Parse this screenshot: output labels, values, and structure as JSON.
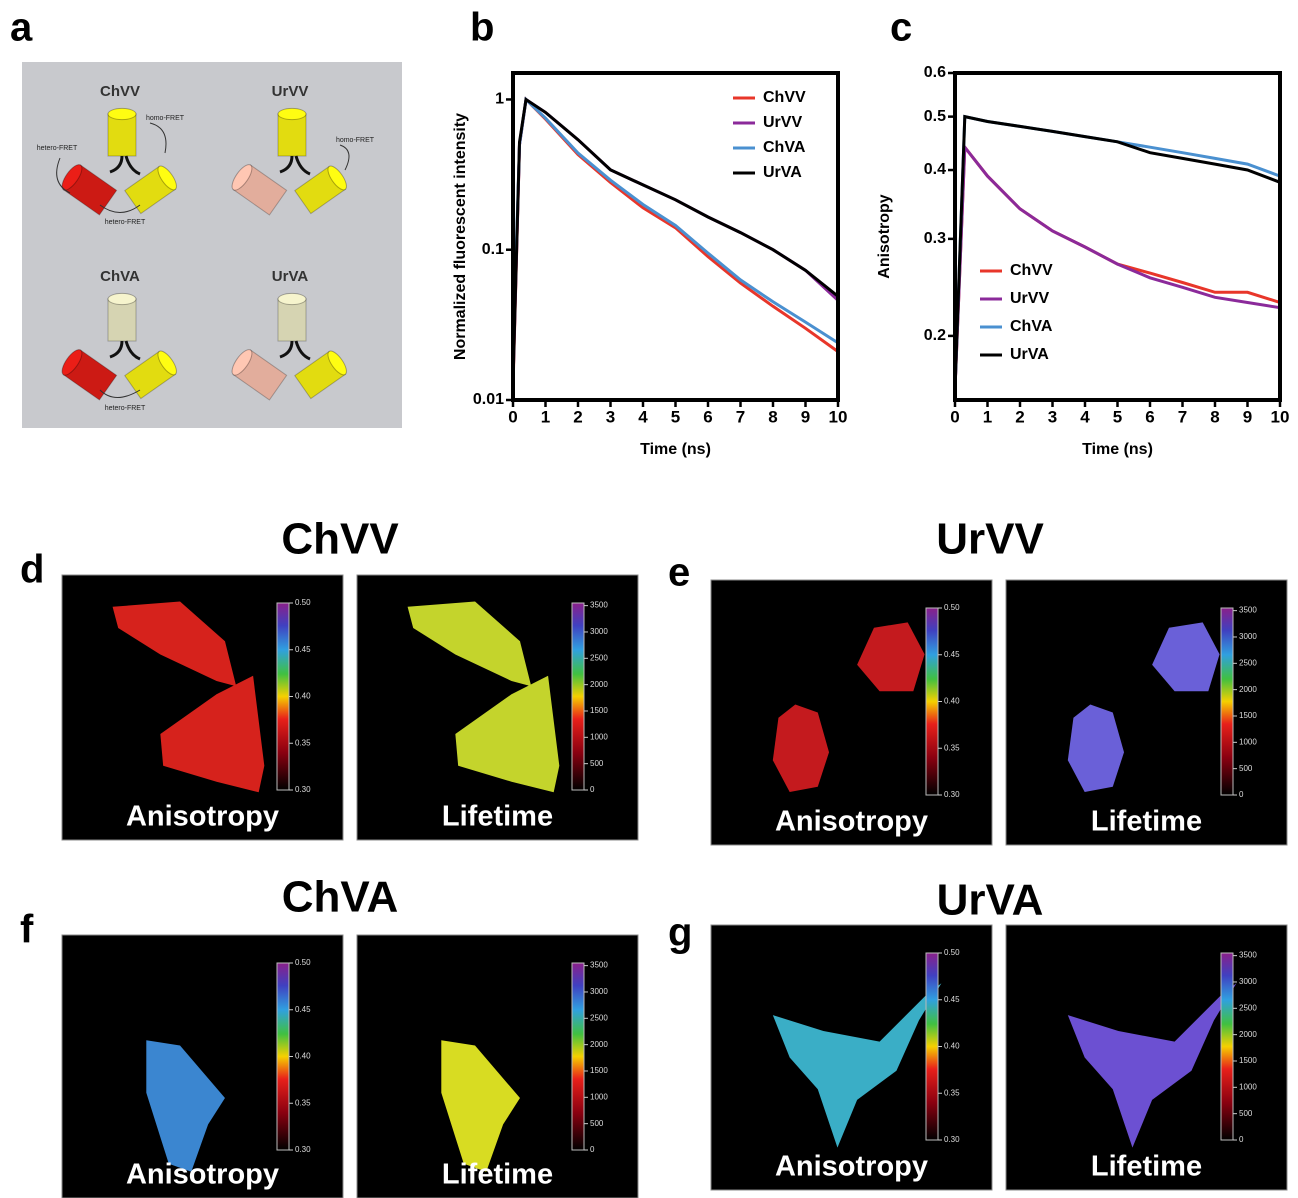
{
  "panel_labels": [
    "a",
    "b",
    "c",
    "d",
    "e",
    "f",
    "g"
  ],
  "diagram": {
    "constructs": [
      "ChVV",
      "UrVV",
      "ChVA",
      "UrVA"
    ],
    "hetero_fret": "hetero-FRET",
    "homo_fret": "homo-FRET"
  },
  "chart_data": [
    {
      "type": "line",
      "y_label": "Normalized fluorescent intensity",
      "x_label": "Time (ns)",
      "log_y": true,
      "legend": "upper right",
      "xlim": [
        0,
        10
      ],
      "ylim": [
        0.01,
        1.5
      ],
      "xticks": [
        0,
        1,
        2,
        3,
        4,
        5,
        6,
        7,
        8,
        9,
        10
      ],
      "yticks": [
        0.01,
        0.1,
        1
      ],
      "x": [
        0,
        0.2,
        0.4,
        1,
        2,
        3,
        4,
        5,
        6,
        7,
        8,
        9,
        10
      ],
      "series": [
        {
          "name": "ChVV",
          "color": "#e8362a",
          "values": [
            0.012,
            0.5,
            1.0,
            0.74,
            0.43,
            0.28,
            0.19,
            0.14,
            0.09,
            0.06,
            0.042,
            0.03,
            0.021
          ]
        },
        {
          "name": "UrVV",
          "color": "#8b2a9a",
          "values": [
            0.013,
            0.5,
            1.0,
            0.82,
            0.54,
            0.34,
            0.27,
            0.215,
            0.165,
            0.13,
            0.1,
            0.073,
            0.046
          ]
        },
        {
          "name": "ChVA",
          "color": "#4a90d0",
          "values": [
            0.02,
            0.5,
            1.0,
            0.75,
            0.44,
            0.29,
            0.2,
            0.145,
            0.095,
            0.063,
            0.045,
            0.033,
            0.024
          ]
        },
        {
          "name": "UrVA",
          "color": "#000000",
          "values": [
            0.013,
            0.52,
            1.0,
            0.82,
            0.54,
            0.34,
            0.27,
            0.215,
            0.165,
            0.13,
            0.1,
            0.073,
            0.049
          ]
        }
      ]
    },
    {
      "type": "line",
      "y_label": "Anisotropy",
      "x_label": "Time (ns)",
      "log_y": true,
      "legend": "lower left",
      "xlim": [
        0,
        10
      ],
      "ylim": [
        0.153,
        0.6
      ],
      "xticks": [
        0,
        1,
        2,
        3,
        4,
        5,
        6,
        7,
        8,
        9,
        10
      ],
      "yticks": [
        0.2,
        0.3,
        0.4,
        0.5,
        0.6
      ],
      "x": [
        0,
        0.3,
        1,
        2,
        3,
        4,
        5,
        6,
        7,
        8,
        9,
        10
      ],
      "series": [
        {
          "name": "ChVV",
          "color": "#e8362a",
          "values": [
            0.16,
            0.44,
            0.39,
            0.34,
            0.31,
            0.29,
            0.27,
            0.26,
            0.25,
            0.24,
            0.24,
            0.23
          ]
        },
        {
          "name": "UrVV",
          "color": "#8b2a9a",
          "values": [
            0.16,
            0.44,
            0.39,
            0.34,
            0.31,
            0.29,
            0.27,
            0.255,
            0.245,
            0.235,
            0.23,
            0.225
          ]
        },
        {
          "name": "ChVA",
          "color": "#4a90d0",
          "values": [
            0.16,
            0.5,
            0.49,
            0.48,
            0.47,
            0.46,
            0.45,
            0.44,
            0.43,
            0.42,
            0.41,
            0.39
          ]
        },
        {
          "name": "UrVA",
          "color": "#000000",
          "values": [
            0.16,
            0.5,
            0.49,
            0.48,
            0.47,
            0.46,
            0.45,
            0.43,
            0.42,
            0.41,
            0.4,
            0.38
          ]
        }
      ]
    }
  ],
  "imaging": [
    {
      "title": "ChVV",
      "panels": [
        "Anisotropy",
        "Lifetime"
      ]
    },
    {
      "title": "UrVV",
      "panels": [
        "Anisotropy",
        "Lifetime"
      ]
    },
    {
      "title": "ChVA",
      "panels": [
        "Anisotropy",
        "Lifetime"
      ]
    },
    {
      "title": "UrVA",
      "panels": [
        "Anisotropy",
        "Lifetime"
      ]
    }
  ],
  "anisotropy_scale": {
    "lim": [
      0.3,
      0.5
    ],
    "ticks": [
      {
        "value": 0.5,
        "label": "0.50"
      },
      {
        "value": 0.45,
        "label": "0.45"
      },
      {
        "value": 0.4,
        "label": "0.40"
      },
      {
        "value": 0.35,
        "label": "0.35"
      },
      {
        "value": 0.3,
        "label": "0.30"
      }
    ]
  },
  "lifetime_scale": {
    "lim": [
      0,
      3550
    ],
    "ticks": [
      3500,
      3000,
      2500,
      2000,
      1500,
      1000,
      500,
      0
    ]
  }
}
